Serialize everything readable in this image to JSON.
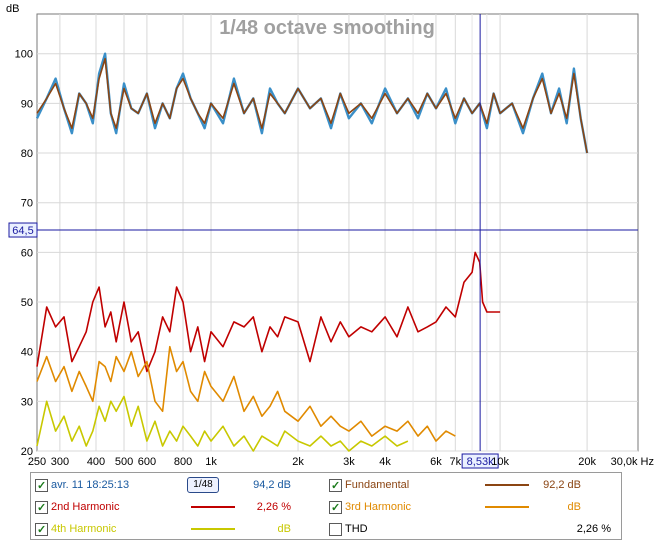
{
  "chart_data": {
    "type": "line",
    "title": "1/48 octave smoothing",
    "ylabel": "dB",
    "xlabel": "Hz",
    "x_scale": "log",
    "xlim": [
      250,
      30000
    ],
    "ylim": [
      20,
      108
    ],
    "y_ticks": [
      20,
      30,
      40,
      50,
      60,
      70,
      80,
      90,
      100
    ],
    "x_ticks": [
      {
        "v": 250,
        "l": "250"
      },
      {
        "v": 300,
        "l": "300"
      },
      {
        "v": 400,
        "l": "400"
      },
      {
        "v": 500,
        "l": "500"
      },
      {
        "v": 600,
        "l": "600"
      },
      {
        "v": 800,
        "l": "800"
      },
      {
        "v": 1000,
        "l": "1k"
      },
      {
        "v": 2000,
        "l": "2k"
      },
      {
        "v": 3000,
        "l": "3k"
      },
      {
        "v": 4000,
        "l": "4k"
      },
      {
        "v": 6000,
        "l": "6k"
      },
      {
        "v": 7000,
        "l": "7k"
      },
      {
        "v": 10000,
        "l": "10k"
      },
      {
        "v": 20000,
        "l": "20k"
      },
      {
        "v": 30000,
        "l": "30,0k Hz"
      }
    ],
    "minor_x_ticks": [
      5000,
      8000,
      9000,
      40000
    ],
    "cursor": {
      "x": 8530,
      "y": 64.5,
      "x_label": "8,53k",
      "y_label": "64,5"
    },
    "grid": true,
    "series": [
      {
        "name": "avr. 11 18:25:13",
        "color": "#3a8fc8",
        "x": [
          250,
          270,
          290,
          310,
          330,
          350,
          370,
          390,
          410,
          430,
          450,
          470,
          500,
          530,
          560,
          600,
          640,
          680,
          720,
          760,
          800,
          850,
          900,
          950,
          1000,
          1100,
          1200,
          1300,
          1400,
          1500,
          1600,
          1700,
          1800,
          2000,
          2200,
          2400,
          2600,
          2800,
          3000,
          3300,
          3600,
          4000,
          4400,
          4800,
          5200,
          5600,
          6000,
          6500,
          7000,
          7500,
          8000,
          8500,
          9000,
          9500,
          10000,
          11000,
          12000,
          13000,
          14000,
          15000,
          16000,
          17000,
          18000,
          19000,
          20000
        ],
        "y": [
          87,
          91,
          95,
          89,
          84,
          92,
          90,
          86,
          96,
          100,
          88,
          84,
          94,
          89,
          88,
          92,
          85,
          90,
          87,
          93,
          96,
          91,
          88,
          85,
          90,
          86,
          95,
          88,
          91,
          84,
          93,
          90,
          88,
          93,
          89,
          91,
          85,
          92,
          87,
          90,
          86,
          93,
          88,
          91,
          87,
          92,
          89,
          93,
          86,
          91,
          88,
          90,
          85,
          92,
          88,
          90,
          84,
          91,
          96,
          88,
          93,
          86,
          97,
          87,
          80
        ]
      },
      {
        "name": "Fundamental",
        "color": "#8b4513",
        "x": [
          250,
          270,
          290,
          310,
          330,
          350,
          370,
          390,
          410,
          430,
          450,
          470,
          500,
          530,
          560,
          600,
          640,
          680,
          720,
          760,
          800,
          850,
          900,
          950,
          1000,
          1100,
          1200,
          1300,
          1400,
          1500,
          1600,
          1700,
          1800,
          2000,
          2200,
          2400,
          2600,
          2800,
          3000,
          3300,
          3600,
          4000,
          4400,
          4800,
          5200,
          5600,
          6000,
          6500,
          7000,
          7500,
          8000,
          8500,
          9000,
          9500,
          10000,
          11000,
          12000,
          13000,
          14000,
          15000,
          16000,
          17000,
          18000,
          19000,
          20000
        ],
        "y": [
          88,
          91,
          94,
          89,
          85,
          92,
          90,
          87,
          95,
          99,
          88,
          85,
          93,
          89,
          88,
          92,
          86,
          90,
          87,
          93,
          95,
          91,
          88,
          86,
          90,
          87,
          94,
          88,
          91,
          85,
          92,
          90,
          88,
          93,
          89,
          91,
          86,
          92,
          88,
          90,
          87,
          92,
          88,
          91,
          88,
          92,
          89,
          92,
          87,
          91,
          88,
          90,
          86,
          92,
          88,
          90,
          85,
          91,
          95,
          88,
          92,
          87,
          96,
          87,
          80
        ]
      },
      {
        "name": "2nd Harmonic",
        "color": "#c00000",
        "x": [
          250,
          270,
          290,
          310,
          330,
          350,
          370,
          390,
          410,
          430,
          450,
          470,
          500,
          530,
          560,
          600,
          640,
          680,
          720,
          760,
          800,
          850,
          900,
          950,
          1000,
          1100,
          1200,
          1300,
          1400,
          1500,
          1600,
          1700,
          1800,
          2000,
          2200,
          2400,
          2600,
          2800,
          3000,
          3300,
          3600,
          4000,
          4400,
          4800,
          5200,
          5600,
          6000,
          6500,
          7000,
          7500,
          8000,
          8200,
          8500,
          8700,
          9000,
          9300,
          9600,
          10000
        ],
        "y": [
          37,
          49,
          45,
          47,
          38,
          41,
          44,
          50,
          53,
          45,
          48,
          42,
          50,
          42,
          44,
          36,
          40,
          47,
          44,
          53,
          50,
          40,
          45,
          38,
          44,
          41,
          46,
          45,
          47,
          40,
          45,
          43,
          47,
          46,
          38,
          47,
          42,
          46,
          43,
          45,
          44,
          47,
          43,
          49,
          44,
          45,
          46,
          49,
          47,
          54,
          56,
          60,
          58,
          50,
          48,
          48,
          48,
          48
        ]
      },
      {
        "name": "3rd Harmonic",
        "color": "#e08a00",
        "x": [
          250,
          270,
          290,
          310,
          330,
          350,
          370,
          390,
          410,
          430,
          450,
          470,
          500,
          530,
          560,
          600,
          640,
          680,
          720,
          760,
          800,
          850,
          900,
          950,
          1000,
          1100,
          1200,
          1300,
          1400,
          1500,
          1600,
          1700,
          1800,
          2000,
          2200,
          2400,
          2600,
          2800,
          3000,
          3300,
          3600,
          4000,
          4400,
          4800,
          5200,
          5600,
          6000,
          6500,
          7000
        ],
        "y": [
          34,
          39,
          34,
          37,
          32,
          36,
          33,
          30,
          38,
          37,
          34,
          39,
          36,
          40,
          35,
          38,
          30,
          28,
          41,
          36,
          38,
          32,
          30,
          36,
          33,
          30,
          35,
          28,
          31,
          27,
          29,
          32,
          28,
          26,
          29,
          25,
          27,
          25,
          24,
          26,
          23,
          25,
          24,
          26,
          23,
          25,
          22,
          24,
          23
        ]
      },
      {
        "name": "4th Harmonic",
        "color": "#c8c800",
        "x": [
          250,
          270,
          290,
          310,
          330,
          350,
          370,
          390,
          410,
          430,
          450,
          470,
          500,
          530,
          560,
          600,
          640,
          680,
          720,
          760,
          800,
          850,
          900,
          950,
          1000,
          1100,
          1200,
          1300,
          1400,
          1500,
          1600,
          1700,
          1800,
          2000,
          2200,
          2400,
          2600,
          2800,
          3000,
          3300,
          3600,
          4000,
          4400,
          4800
        ],
        "y": [
          21,
          30,
          24,
          27,
          22,
          25,
          21,
          24,
          29,
          26,
          30,
          28,
          31,
          25,
          29,
          22,
          26,
          21,
          24,
          22,
          25,
          23,
          21,
          24,
          22,
          25,
          21,
          23,
          20,
          23,
          22,
          21,
          24,
          22,
          21,
          23,
          21,
          22,
          20,
          22,
          21,
          23,
          21,
          22
        ]
      }
    ]
  },
  "legend": {
    "rows": [
      {
        "label": "avr. 11 18:25:13",
        "label_color": "#1a5aa0",
        "checked": true,
        "value": "94,2 dB",
        "value_color": "#1a5aa0"
      },
      {
        "label": "Fundamental",
        "label_color": "#8b4513",
        "checked": true,
        "value": "92,2 dB",
        "value_color": "#8b4513",
        "swatch": "#8b4513"
      },
      {
        "label": "2nd Harmonic",
        "label_color": "#c00000",
        "checked": true,
        "value": "2,26 %",
        "value_color": "#c00000",
        "swatch": "#c00000"
      },
      {
        "label": "3rd Harmonic",
        "label_color": "#e08a00",
        "checked": true,
        "value": "dB",
        "value_color": "#e08a00",
        "swatch": "#e08a00"
      },
      {
        "label": "4th Harmonic",
        "label_color": "#c8c800",
        "checked": true,
        "value": "dB",
        "value_color": "#c8c800",
        "swatch": "#c8c800"
      },
      {
        "label": "THD",
        "label_color": "#000000",
        "checked": false,
        "value": "2,26 %",
        "value_color": "#000000"
      }
    ],
    "smoothing_button": "1/48"
  }
}
